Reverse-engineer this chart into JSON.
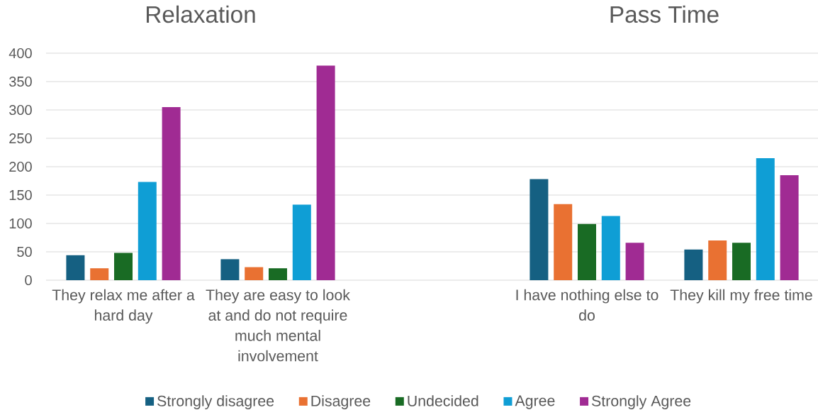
{
  "chart_data": {
    "type": "bar",
    "categories": [
      "They relax me after a hard day",
      "They are easy to look at and do not require much mental involvement",
      null,
      "I have nothing else to do",
      "They kill my free time"
    ],
    "series": [
      {
        "name": "Strongly disagree",
        "color": "#156082",
        "values": [
          44,
          37,
          null,
          178,
          54
        ]
      },
      {
        "name": "Disagree",
        "color": "#E97132",
        "values": [
          21,
          23,
          null,
          134,
          70
        ]
      },
      {
        "name": "Undecided",
        "color": "#196B24",
        "values": [
          48,
          21,
          null,
          99,
          66
        ]
      },
      {
        "name": "Agree",
        "color": "#0F9ED5",
        "values": [
          173,
          133,
          null,
          113,
          215
        ]
      },
      {
        "name": "Strongly Agree",
        "color": "#A02B93",
        "values": [
          305,
          378,
          null,
          66,
          185
        ]
      }
    ],
    "ylim": [
      0,
      400
    ],
    "yticks": [
      0,
      50,
      100,
      150,
      200,
      250,
      300,
      350,
      400
    ],
    "grid": "y",
    "legend": "bottom",
    "annotations": [
      "Relaxation",
      "Pass Time"
    ]
  }
}
